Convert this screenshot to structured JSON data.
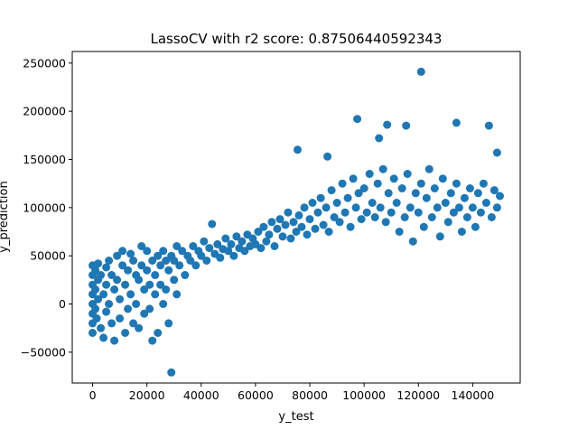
{
  "chart_data": {
    "type": "scatter",
    "title": "LassoCV  with r2 score: 0.87506440592343",
    "xlabel": "y_test",
    "ylabel": "y_prediction",
    "xlim": [
      -7500,
      157500
    ],
    "ylim": [
      -82000,
      262000
    ],
    "grid": false,
    "point_color": "#1f77b4",
    "xticks": [
      {
        "value": 0,
        "label": "0"
      },
      {
        "value": 20000,
        "label": "20000"
      },
      {
        "value": 40000,
        "label": "40000"
      },
      {
        "value": 60000,
        "label": "60000"
      },
      {
        "value": 80000,
        "label": "80000"
      },
      {
        "value": 100000,
        "label": "100000"
      },
      {
        "value": 120000,
        "label": "120000"
      },
      {
        "value": 140000,
        "label": "140000"
      }
    ],
    "yticks": [
      {
        "value": -50000,
        "label": "−50000"
      },
      {
        "value": 0,
        "label": "0"
      },
      {
        "value": 50000,
        "label": "50000"
      },
      {
        "value": 100000,
        "label": "100000"
      },
      {
        "value": 150000,
        "label": "150000"
      },
      {
        "value": 200000,
        "label": "200000"
      },
      {
        "value": 250000,
        "label": "250000"
      }
    ],
    "points": [
      [
        0,
        40000
      ],
      [
        0,
        30000
      ],
      [
        0,
        20000
      ],
      [
        0,
        10000
      ],
      [
        0,
        0
      ],
      [
        0,
        -10000
      ],
      [
        0,
        -20000
      ],
      [
        0,
        -30000
      ],
      [
        1000,
        35000
      ],
      [
        1000,
        15000
      ],
      [
        1000,
        -5000
      ],
      [
        1500,
        -15000
      ],
      [
        2000,
        42000
      ],
      [
        2000,
        25000
      ],
      [
        2000,
        5000
      ],
      [
        3000,
        -25000
      ],
      [
        3000,
        30000
      ],
      [
        4000,
        10000
      ],
      [
        4000,
        -35000
      ],
      [
        5000,
        38000
      ],
      [
        5000,
        20000
      ],
      [
        5000,
        -8000
      ],
      [
        6000,
        45000
      ],
      [
        6000,
        0
      ],
      [
        7000,
        30000
      ],
      [
        7000,
        -20000
      ],
      [
        8000,
        15000
      ],
      [
        8000,
        -38000
      ],
      [
        9000,
        50000
      ],
      [
        9000,
        25000
      ],
      [
        10000,
        5000
      ],
      [
        10000,
        -15000
      ],
      [
        11000,
        40000
      ],
      [
        11000,
        55000
      ],
      [
        12000,
        20000
      ],
      [
        12000,
        -30000
      ],
      [
        13000,
        35000
      ],
      [
        13000,
        -5000
      ],
      [
        14000,
        10000
      ],
      [
        14000,
        52000
      ],
      [
        15000,
        45000
      ],
      [
        15000,
        -20000
      ],
      [
        16000,
        30000
      ],
      [
        16000,
        0
      ],
      [
        17000,
        25000
      ],
      [
        17000,
        -25000
      ],
      [
        18000,
        40000
      ],
      [
        18000,
        60000
      ],
      [
        19000,
        15000
      ],
      [
        19000,
        -10000
      ],
      [
        20000,
        35000
      ],
      [
        20000,
        55000
      ],
      [
        21000,
        20000
      ],
      [
        21000,
        -5000
      ],
      [
        22000,
        45000
      ],
      [
        22000,
        -38000
      ],
      [
        23000,
        30000
      ],
      [
        23000,
        10000
      ],
      [
        24000,
        50000
      ],
      [
        24000,
        -30000
      ],
      [
        25000,
        40000
      ],
      [
        25000,
        20000
      ],
      [
        26000,
        55000
      ],
      [
        26000,
        0
      ],
      [
        27000,
        45000
      ],
      [
        27000,
        15000
      ],
      [
        28000,
        35000
      ],
      [
        28000,
        -20000
      ],
      [
        29000,
        50000
      ],
      [
        29000,
        -71000
      ],
      [
        30000,
        45000
      ],
      [
        30000,
        25000
      ],
      [
        31000,
        60000
      ],
      [
        31000,
        10000
      ],
      [
        32000,
        40000
      ],
      [
        33000,
        55000
      ],
      [
        34000,
        30000
      ],
      [
        35000,
        50000
      ],
      [
        36000,
        45000
      ],
      [
        37000,
        60000
      ],
      [
        38000,
        40000
      ],
      [
        39000,
        55000
      ],
      [
        40000,
        50000
      ],
      [
        41000,
        65000
      ],
      [
        42000,
        45000
      ],
      [
        43000,
        58000
      ],
      [
        44000,
        83000
      ],
      [
        45000,
        52000
      ],
      [
        46000,
        62000
      ],
      [
        47000,
        48000
      ],
      [
        48000,
        57000
      ],
      [
        49000,
        68000
      ],
      [
        50000,
        55000
      ],
      [
        51000,
        62000
      ],
      [
        52000,
        50000
      ],
      [
        53000,
        70000
      ],
      [
        54000,
        58000
      ],
      [
        55000,
        65000
      ],
      [
        56000,
        55000
      ],
      [
        57000,
        72000
      ],
      [
        58000,
        60000
      ],
      [
        59000,
        68000
      ],
      [
        60000,
        62000
      ],
      [
        61000,
        75000
      ],
      [
        62000,
        58000
      ],
      [
        63000,
        80000
      ],
      [
        64000,
        65000
      ],
      [
        65000,
        72000
      ],
      [
        66000,
        85000
      ],
      [
        67000,
        60000
      ],
      [
        68000,
        78000
      ],
      [
        69000,
        88000
      ],
      [
        70000,
        70000
      ],
      [
        71000,
        82000
      ],
      [
        72000,
        95000
      ],
      [
        73000,
        68000
      ],
      [
        74000,
        85000
      ],
      [
        75000,
        75000
      ],
      [
        75500,
        160000
      ],
      [
        76000,
        92000
      ],
      [
        77000,
        80000
      ],
      [
        78000,
        100000
      ],
      [
        79000,
        72000
      ],
      [
        80000,
        88000
      ],
      [
        81000,
        105000
      ],
      [
        82000,
        78000
      ],
      [
        83000,
        95000
      ],
      [
        84000,
        110000
      ],
      [
        85000,
        82000
      ],
      [
        86000,
        100000
      ],
      [
        86500,
        153000
      ],
      [
        87000,
        75000
      ],
      [
        88000,
        118000
      ],
      [
        89000,
        90000
      ],
      [
        90000,
        105000
      ],
      [
        91000,
        85000
      ],
      [
        92000,
        125000
      ],
      [
        93000,
        95000
      ],
      [
        94000,
        110000
      ],
      [
        95000,
        80000
      ],
      [
        96000,
        130000
      ],
      [
        97000,
        100000
      ],
      [
        97500,
        192000
      ],
      [
        98000,
        115000
      ],
      [
        99000,
        88000
      ],
      [
        100000,
        120000
      ],
      [
        101000,
        95000
      ],
      [
        102000,
        135000
      ],
      [
        103000,
        105000
      ],
      [
        104000,
        90000
      ],
      [
        105000,
        125000
      ],
      [
        105500,
        172000
      ],
      [
        106000,
        100000
      ],
      [
        107000,
        140000
      ],
      [
        108000,
        85000
      ],
      [
        108500,
        186000
      ],
      [
        109000,
        115000
      ],
      [
        110000,
        95000
      ],
      [
        111000,
        130000
      ],
      [
        112000,
        105000
      ],
      [
        113000,
        75000
      ],
      [
        114000,
        120000
      ],
      [
        115000,
        90000
      ],
      [
        115500,
        185000
      ],
      [
        116000,
        135000
      ],
      [
        117000,
        100000
      ],
      [
        118000,
        65000
      ],
      [
        119000,
        115000
      ],
      [
        120000,
        95000
      ],
      [
        121000,
        241000
      ],
      [
        121000,
        125000
      ],
      [
        122000,
        80000
      ],
      [
        123000,
        110000
      ],
      [
        124000,
        140000
      ],
      [
        125000,
        90000
      ],
      [
        126000,
        120000
      ],
      [
        127000,
        100000
      ],
      [
        128000,
        70000
      ],
      [
        129000,
        130000
      ],
      [
        130000,
        105000
      ],
      [
        131000,
        85000
      ],
      [
        132000,
        115000
      ],
      [
        133000,
        95000
      ],
      [
        134000,
        188000
      ],
      [
        134000,
        125000
      ],
      [
        135000,
        100000
      ],
      [
        136000,
        75000
      ],
      [
        137000,
        110000
      ],
      [
        138000,
        90000
      ],
      [
        139000,
        120000
      ],
      [
        140000,
        100000
      ],
      [
        141000,
        80000
      ],
      [
        142000,
        115000
      ],
      [
        143000,
        95000
      ],
      [
        144000,
        125000
      ],
      [
        145000,
        105000
      ],
      [
        146000,
        185000
      ],
      [
        147000,
        90000
      ],
      [
        148000,
        118000
      ],
      [
        149000,
        157000
      ],
      [
        149000,
        100000
      ],
      [
        150000,
        112000
      ]
    ]
  }
}
